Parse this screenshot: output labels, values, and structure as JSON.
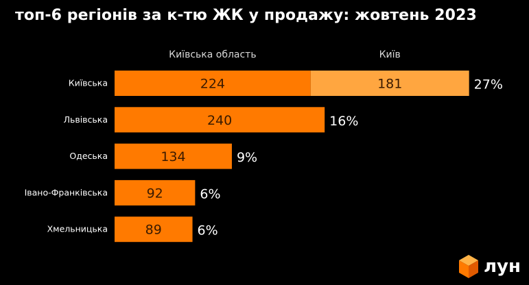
{
  "title": "топ-6 регіонів за к-тю ЖК у продажу: жовтень 2023",
  "logo_text": "лун",
  "colors": {
    "background": "#000000",
    "series_oblast": "#ff7a00",
    "series_city": "#ffa640",
    "bar_text": "#3a1a00",
    "label_text": "#ffffff"
  },
  "chart_data": {
    "type": "bar",
    "orientation": "horizontal",
    "stacked": true,
    "categories": [
      "Київська",
      "Львівська",
      "Одеська",
      "Івано-Франківська",
      "Хмельницька"
    ],
    "series": [
      {
        "name": "Київська область",
        "values": [
          224,
          240,
          134,
          92,
          89
        ]
      },
      {
        "name": "Київ",
        "values": [
          181,
          null,
          null,
          null,
          null
        ]
      }
    ],
    "share_labels": [
      "27%",
      "16%",
      "9%",
      "6%",
      "6%"
    ],
    "legend": "top",
    "grid": false
  }
}
